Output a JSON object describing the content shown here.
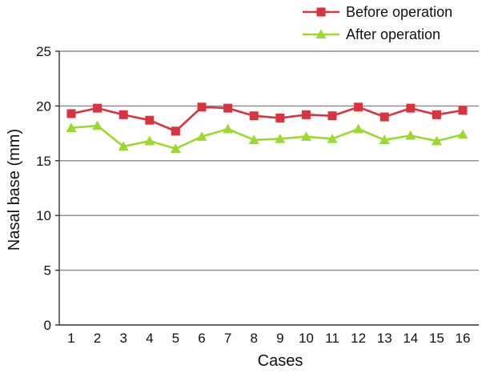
{
  "chart_data": {
    "type": "line",
    "xlabel": "Cases",
    "ylabel": "Nasal base (mm)",
    "categories": [
      "1",
      "2",
      "3",
      "4",
      "5",
      "6",
      "7",
      "8",
      "9",
      "10",
      "11",
      "12",
      "13",
      "14",
      "15",
      "16"
    ],
    "ylim": [
      0,
      25
    ],
    "yticks": [
      "0",
      "5",
      "10",
      "15",
      "20",
      "25"
    ],
    "grid": "horizontal",
    "legend_position": "top-right",
    "series": [
      {
        "name": "Before operation",
        "color": "#d9333f",
        "marker": "square",
        "values": [
          19.3,
          19.8,
          19.2,
          18.7,
          17.7,
          19.9,
          19.8,
          19.1,
          18.9,
          19.2,
          19.1,
          19.9,
          19.0,
          19.8,
          19.2,
          19.6
        ]
      },
      {
        "name": "After operation",
        "color": "#9bd92e",
        "marker": "triangle",
        "values": [
          18.0,
          18.2,
          16.3,
          16.8,
          16.1,
          17.2,
          17.9,
          16.9,
          17.0,
          17.2,
          17.0,
          17.9,
          16.9,
          17.3,
          16.8,
          17.4
        ]
      }
    ]
  }
}
